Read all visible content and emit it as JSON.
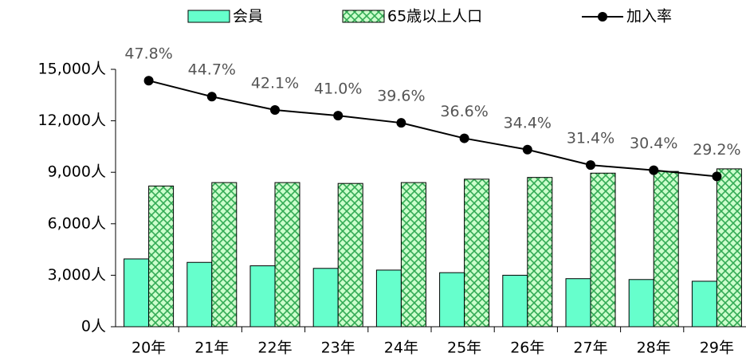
{
  "chart_data": {
    "type": "bar-line",
    "categories": [
      "20年",
      "21年",
      "22年",
      "23年",
      "24年",
      "25年",
      "26年",
      "27年",
      "28年",
      "29年"
    ],
    "series": [
      {
        "name": "会員",
        "color": "#66ffcc",
        "type": "bar",
        "values": [
          3950,
          3750,
          3550,
          3400,
          3300,
          3150,
          3000,
          2800,
          2750,
          2650
        ]
      },
      {
        "name": "65歳以上人口",
        "color": "#ccffcc",
        "type": "bar",
        "pattern": "crosshatch",
        "values": [
          8200,
          8400,
          8400,
          8350,
          8400,
          8600,
          8700,
          8950,
          9050,
          9200
        ]
      },
      {
        "name": "加入率",
        "color": "#000000",
        "type": "line",
        "axis": "y2",
        "values": [
          47.8,
          44.7,
          42.1,
          41.0,
          39.6,
          36.6,
          34.4,
          31.4,
          30.4,
          29.2
        ],
        "value_labels": [
          "47.8%",
          "44.7%",
          "42.1%",
          "41.0%",
          "39.6%",
          "36.6%",
          "34.4%",
          "31.4%",
          "30.4%",
          "29.2%"
        ]
      }
    ],
    "ylim": [
      0,
      15000
    ],
    "yticks": [
      {
        "value": 0,
        "label": "0人"
      },
      {
        "value": 3000,
        "label": "3,000人"
      },
      {
        "value": 6000,
        "label": "6,000人"
      },
      {
        "value": 9000,
        "label": "9,000人"
      },
      {
        "value": 12000,
        "label": "12,000人"
      },
      {
        "value": 15000,
        "label": "15,000人"
      }
    ],
    "y2lim": [
      0,
      50
    ],
    "legend": "top"
  }
}
